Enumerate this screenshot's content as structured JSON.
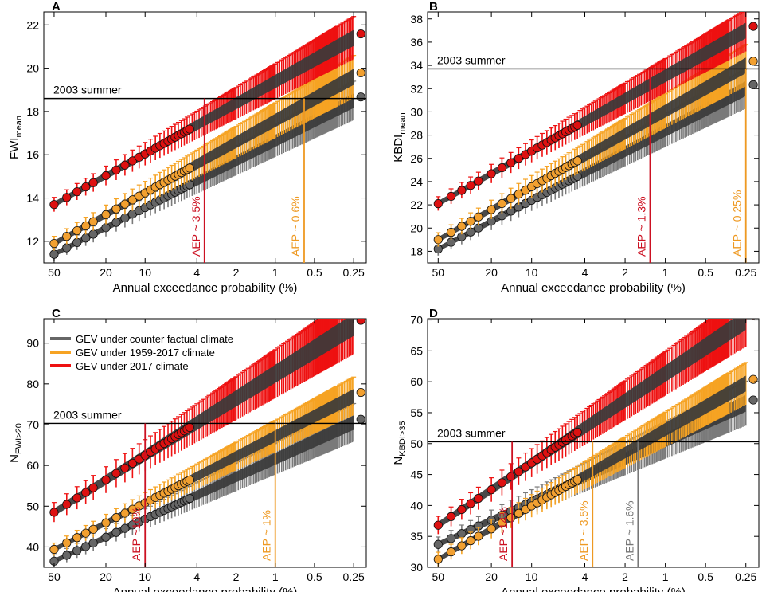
{
  "chart_data": [
    {
      "panel": "A",
      "type": "scatter",
      "ylabel": "FWI",
      "ylabel_sub": "mean",
      "xlabel": "Annual exceedance probability (%)",
      "x_scale": "log-reversed",
      "xlim": [
        60,
        0.2
      ],
      "ylim": [
        11,
        22.6
      ],
      "xticks": [
        "50",
        "20",
        "10",
        "4",
        "2",
        "1",
        "0.5",
        "0.25"
      ],
      "yticks": [
        12,
        14,
        16,
        18,
        20,
        22
      ],
      "ref_label": "2003 summer",
      "ref_value": 18.6,
      "markers": [
        {
          "aep": 3.5,
          "label": "AEP ~ 3.5%",
          "color": "#cc1122"
        },
        {
          "aep": 0.6,
          "label": "AEP ~ 0.6%",
          "color": "#ee9922"
        }
      ],
      "series": [
        {
          "name": "GEV under 2017 climate",
          "color": "#dd1111",
          "band_color": "#ee1111",
          "center_color": "#3a3a3a",
          "y_start": 13.7,
          "y_end": 21.4,
          "spread": 0.55
        },
        {
          "name": "GEV under 1959-2017 climate",
          "color": "#f2a030",
          "band_color": "#f6a323",
          "center_color": "#3a3a3a",
          "y_start": 11.9,
          "y_end": 19.6,
          "spread": 0.55
        },
        {
          "name": "GEV under counter factual climate",
          "color": "#666666",
          "band_color": "#7a7a7a",
          "center_color": "#3a3a3a",
          "y_start": 11.4,
          "y_end": 18.5,
          "spread": 0.5
        }
      ]
    },
    {
      "panel": "B",
      "type": "scatter",
      "ylabel": "KBDI",
      "ylabel_sub": "mean",
      "xlabel": "Annual exceedance probability (%)",
      "x_scale": "log-reversed",
      "xlim": [
        60,
        0.2
      ],
      "ylim": [
        17,
        38.6
      ],
      "xticks": [
        "50",
        "20",
        "10",
        "4",
        "2",
        "1",
        "0.5",
        "0.25"
      ],
      "yticks": [
        18,
        20,
        22,
        24,
        26,
        28,
        30,
        32,
        34,
        36,
        38
      ],
      "ref_label": "2003 summer",
      "ref_value": 33.7,
      "markers": [
        {
          "aep": 1.3,
          "label": "AEP ~ 1.3%",
          "color": "#cc1122"
        },
        {
          "aep": 0.25,
          "label": "AEP ~ 0.25%",
          "color": "#ee9922"
        }
      ],
      "series": [
        {
          "name": "GEV under 2017 climate",
          "color": "#dd1111",
          "band_color": "#ee1111",
          "center_color": "#3a3a3a",
          "y_start": 22.1,
          "y_end": 37.0,
          "spread": 1.0
        },
        {
          "name": "GEV under 1959-2017 climate",
          "color": "#f2a030",
          "band_color": "#f6a323",
          "center_color": "#3a3a3a",
          "y_start": 19.0,
          "y_end": 34.0,
          "spread": 1.0
        },
        {
          "name": "GEV under counter factual climate",
          "color": "#666666",
          "band_color": "#7a7a7a",
          "center_color": "#3a3a3a",
          "y_start": 18.2,
          "y_end": 32.0,
          "spread": 0.95
        }
      ]
    },
    {
      "panel": "C",
      "type": "scatter",
      "ylabel": "N",
      "ylabel_sub": "FWI>20",
      "xlabel": "Annual exceedance probability (%)",
      "x_scale": "log-reversed",
      "xlim": [
        60,
        0.2
      ],
      "ylim": [
        35,
        96
      ],
      "xticks": [
        "50",
        "20",
        "10",
        "4",
        "2",
        "1",
        "0.5",
        "0.25"
      ],
      "yticks": [
        40,
        50,
        60,
        70,
        80,
        90
      ],
      "ref_label": "2003 summer",
      "ref_value": 70.3,
      "markers": [
        {
          "aep": 10,
          "label": "AEP ~10%",
          "color": "#cc1122"
        },
        {
          "aep": 1,
          "label": "AEP ~ 1%",
          "color": "#ee9922"
        }
      ],
      "legend": {
        "position": "top-left",
        "entries": [
          {
            "label": "GEV under counter factual climate",
            "color": "#666666"
          },
          {
            "label": "GEV under 1959-2017 climate",
            "color": "#f6a323"
          },
          {
            "label": "GEV under 2017 climate",
            "color": "#ee1111"
          }
        ]
      },
      "series": [
        {
          "name": "GEV under 2017 climate",
          "color": "#dd1111",
          "band_color": "#ee1111",
          "center_color": "#3a3a3a",
          "y_start": 48.5,
          "y_end": 94.5,
          "spread": 4.0
        },
        {
          "name": "GEV under 1959-2017 climate",
          "color": "#f2a030",
          "band_color": "#f6a323",
          "center_color": "#3a3a3a",
          "y_start": 39.4,
          "y_end": 77.0,
          "spread": 2.6
        },
        {
          "name": "GEV under counter factual climate",
          "color": "#666666",
          "band_color": "#7a7a7a",
          "center_color": "#3a3a3a",
          "y_start": 36.5,
          "y_end": 70.5,
          "spread": 2.6
        }
      ]
    },
    {
      "panel": "D",
      "type": "scatter",
      "ylabel": "N",
      "ylabel_sub": "KBDI>35",
      "xlabel": "Annual exceedance probability (%)",
      "x_scale": "log-reversed",
      "xlim": [
        60,
        0.2
      ],
      "ylim": [
        30,
        70.2
      ],
      "xticks": [
        "50",
        "20",
        "10",
        "4",
        "2",
        "1",
        "0.5",
        "0.25"
      ],
      "yticks": [
        30,
        35,
        40,
        45,
        50,
        55,
        60,
        65,
        70
      ],
      "ref_label": "2003 summer",
      "ref_value": 50.3,
      "markers": [
        {
          "aep": 14,
          "label": "AEP ~14%",
          "color": "#cc1122"
        },
        {
          "aep": 3.5,
          "label": "AEP ~ 3.5%",
          "color": "#ee9922"
        },
        {
          "aep": 1.6,
          "label": "AEP ~ 1.6%",
          "color": "#777777"
        }
      ],
      "series": [
        {
          "name": "GEV under 2017 climate",
          "color": "#dd1111",
          "band_color": "#ee1111",
          "center_color": "#3a3a3a",
          "y_start": 36.8,
          "y_end": 70.0,
          "spread": 2.4
        },
        {
          "name": "GEV under 1959-2017 climate",
          "color": "#f2a030",
          "band_color": "#f6a323",
          "center_color": "#3a3a3a",
          "y_start": 31.3,
          "y_end": 59.7,
          "spread": 1.9
        },
        {
          "name": "GEV under counter factual climate",
          "color": "#666666",
          "band_color": "#7a7a7a",
          "center_color": "#3a3a3a",
          "y_start": 33.7,
          "y_end": 56.5,
          "spread": 2.0
        }
      ]
    }
  ]
}
